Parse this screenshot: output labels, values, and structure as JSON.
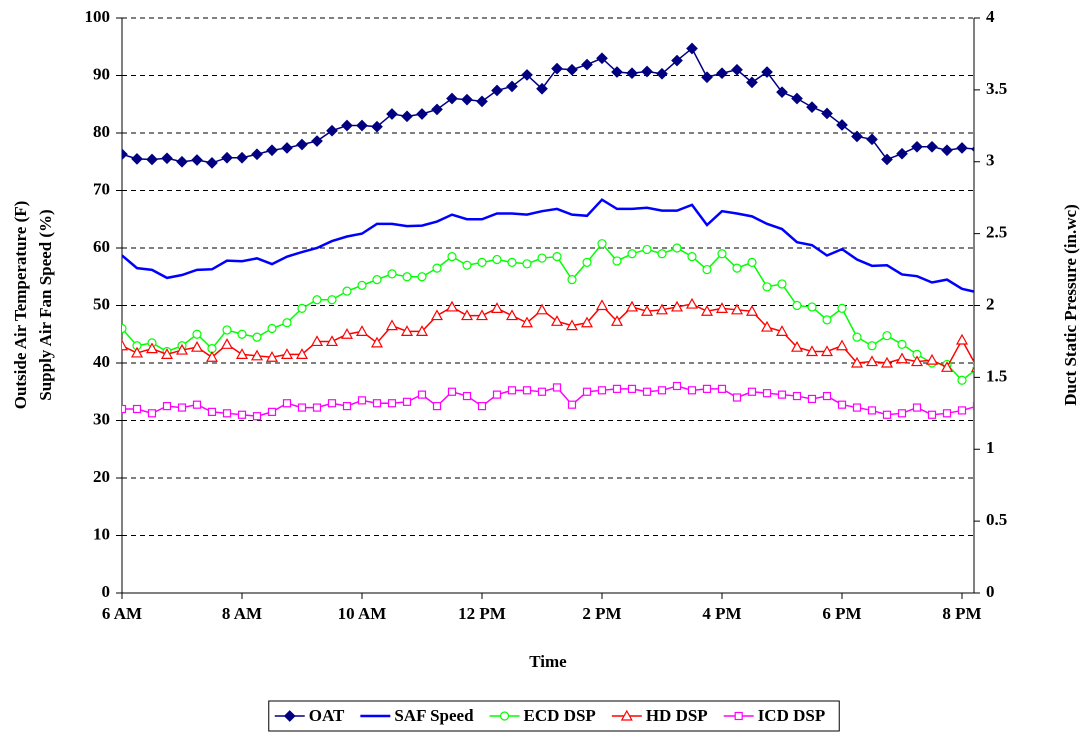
{
  "chart_data": {
    "type": "line",
    "xlabel": "Time",
    "ylabel": [
      "Outside Air Temperature (F)",
      "Supply Air Fan Speed (%)"
    ],
    "y2label": "Duct Static Pressure (in.wc)",
    "x": [
      6,
      6.25,
      6.5,
      6.75,
      7,
      7.25,
      7.5,
      7.75,
      8,
      8.25,
      8.5,
      8.75,
      9,
      9.25,
      9.5,
      9.75,
      10,
      10.25,
      10.5,
      10.75,
      11,
      11.25,
      11.5,
      11.75,
      12,
      12.25,
      12.5,
      12.75,
      13,
      13.25,
      13.5,
      13.75,
      14,
      14.25,
      14.5,
      14.75,
      15,
      15.25,
      15.5,
      15.75,
      16,
      16.25,
      16.5,
      16.75,
      17,
      17.25,
      17.5,
      17.75,
      18,
      18.25,
      18.5,
      18.75,
      19,
      19.25,
      19.5,
      19.75,
      20,
      20.25
    ],
    "xlim": [
      6,
      20.2
    ],
    "xticks": [
      {
        "value": 6,
        "label": "6 AM"
      },
      {
        "value": 8,
        "label": "8 AM"
      },
      {
        "value": 10,
        "label": "10 AM"
      },
      {
        "value": 12,
        "label": "12 PM"
      },
      {
        "value": 14,
        "label": "2 PM"
      },
      {
        "value": 16,
        "label": "4 PM"
      },
      {
        "value": 18,
        "label": "6 PM"
      },
      {
        "value": 20,
        "label": "8 PM"
      }
    ],
    "ylim": [
      0,
      100
    ],
    "yticks": [
      0,
      10,
      20,
      30,
      40,
      50,
      60,
      70,
      80,
      90,
      100
    ],
    "y2lim": [
      0,
      4
    ],
    "y2ticks": [
      0,
      0.5,
      1,
      1.5,
      2,
      2.5,
      3,
      3.5,
      4
    ],
    "grid": true,
    "legend": "bottom",
    "series": [
      {
        "name": "OAT",
        "color": "#000080",
        "marker": "diamond",
        "values": [
          76.3,
          75.5,
          75.4,
          75.6,
          75.0,
          75.3,
          74.8,
          75.7,
          75.7,
          76.3,
          77.0,
          77.4,
          78.0,
          78.6,
          80.4,
          81.3,
          81.3,
          81.1,
          83.3,
          82.9,
          83.3,
          84.1,
          86.0,
          85.8,
          85.5,
          87.4,
          88.1,
          90.1,
          87.7,
          91.2,
          91.0,
          91.9,
          93.0,
          90.6,
          90.4,
          90.7,
          90.3,
          92.6,
          94.7,
          89.7,
          90.4,
          91.0,
          88.8,
          90.6,
          87.1,
          86.0,
          84.5,
          83.4,
          81.4,
          79.4,
          78.9,
          75.4,
          76.4,
          77.6,
          77.6,
          77.0,
          77.4,
          77.2
        ]
      },
      {
        "name": "SAF Speed",
        "color": "#0000ff",
        "marker": "none",
        "values": [
          58.7,
          56.5,
          56.2,
          54.8,
          55.3,
          56.2,
          56.3,
          57.8,
          57.7,
          58.2,
          57.2,
          58.5,
          59.3,
          60.0,
          61.2,
          62.0,
          62.5,
          64.2,
          64.2,
          63.8,
          63.9,
          64.6,
          65.8,
          65.0,
          65.0,
          66.0,
          66.0,
          65.8,
          66.4,
          66.8,
          65.8,
          65.6,
          68.4,
          66.8,
          66.8,
          67.0,
          66.5,
          66.5,
          67.5,
          64.0,
          66.4,
          66.0,
          65.5,
          64.2,
          63.3,
          61.0,
          60.5,
          58.7,
          59.8,
          58.0,
          56.9,
          57.0,
          55.4,
          55.1,
          54.0,
          54.5,
          52.9,
          52.3
        ]
      },
      {
        "name": "ECD DSP",
        "color": "#00ff00",
        "marker": "circle",
        "axis": "y2",
        "values": [
          1.84,
          1.72,
          1.74,
          1.68,
          1.72,
          1.8,
          1.7,
          1.83,
          1.8,
          1.78,
          1.84,
          1.88,
          1.98,
          2.04,
          2.04,
          2.1,
          2.14,
          2.18,
          2.22,
          2.2,
          2.2,
          2.26,
          2.34,
          2.28,
          2.3,
          2.32,
          2.3,
          2.29,
          2.33,
          2.34,
          2.18,
          2.3,
          2.43,
          2.31,
          2.36,
          2.39,
          2.36,
          2.4,
          2.34,
          2.25,
          2.36,
          2.26,
          2.3,
          2.13,
          2.15,
          2.0,
          1.99,
          1.9,
          1.98,
          1.78,
          1.72,
          1.79,
          1.73,
          1.66,
          1.6,
          1.59,
          1.48,
          1.56
        ]
      },
      {
        "name": "HD DSP",
        "color": "#ff0000",
        "marker": "triangle",
        "axis": "y2",
        "values": [
          1.72,
          1.67,
          1.7,
          1.66,
          1.69,
          1.71,
          1.64,
          1.73,
          1.66,
          1.65,
          1.64,
          1.66,
          1.66,
          1.75,
          1.75,
          1.8,
          1.82,
          1.74,
          1.86,
          1.82,
          1.82,
          1.93,
          1.99,
          1.93,
          1.93,
          1.98,
          1.93,
          1.88,
          1.97,
          1.89,
          1.86,
          1.88,
          2.0,
          1.89,
          1.99,
          1.96,
          1.97,
          1.99,
          2.01,
          1.96,
          1.98,
          1.97,
          1.96,
          1.85,
          1.82,
          1.71,
          1.68,
          1.68,
          1.72,
          1.6,
          1.61,
          1.6,
          1.63,
          1.61,
          1.62,
          1.57,
          1.76,
          1.57
        ]
      },
      {
        "name": "ICD DSP",
        "color": "#ff00ff",
        "marker": "square",
        "axis": "y2",
        "values": [
          1.28,
          1.28,
          1.25,
          1.3,
          1.29,
          1.31,
          1.26,
          1.25,
          1.24,
          1.23,
          1.26,
          1.32,
          1.29,
          1.29,
          1.32,
          1.3,
          1.34,
          1.32,
          1.32,
          1.33,
          1.38,
          1.3,
          1.4,
          1.37,
          1.3,
          1.38,
          1.41,
          1.41,
          1.4,
          1.43,
          1.31,
          1.4,
          1.41,
          1.42,
          1.42,
          1.4,
          1.41,
          1.44,
          1.41,
          1.42,
          1.42,
          1.36,
          1.4,
          1.39,
          1.38,
          1.37,
          1.35,
          1.37,
          1.31,
          1.29,
          1.27,
          1.24,
          1.25,
          1.29,
          1.24,
          1.25,
          1.27,
          1.3
        ]
      }
    ]
  }
}
